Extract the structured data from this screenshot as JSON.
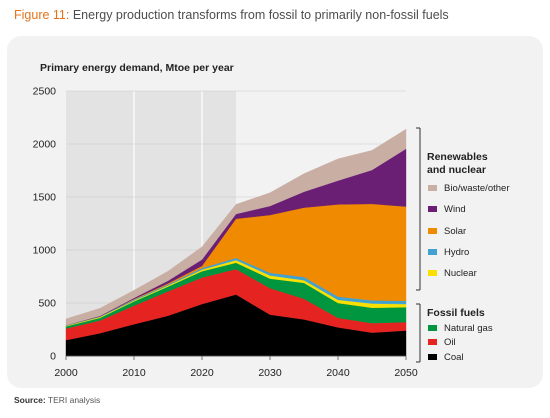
{
  "figure": {
    "number": "Figure 11:",
    "caption": "Energy production transforms from fossil to primarily non-fossil fuels"
  },
  "source": {
    "label": "Source:",
    "text": "TERI analysis"
  },
  "chart_data": {
    "type": "area",
    "stacked": true,
    "title": "Primary energy demand, Mtoe per year",
    "x": [
      2000,
      2005,
      2010,
      2015,
      2020,
      2025,
      2030,
      2035,
      2040,
      2045,
      2050
    ],
    "xticks": [
      2000,
      2010,
      2020,
      2030,
      2040,
      2050
    ],
    "yticks": [
      0,
      500,
      1000,
      1500,
      2000,
      2500
    ],
    "xlim": [
      2000,
      2050
    ],
    "ylim": [
      0,
      2500
    ],
    "shaded_historical_period": [
      2000,
      2025
    ],
    "legend": {
      "placement": "right",
      "groups": [
        {
          "title": "Renewables and nuclear",
          "title_lines": [
            "Renewables",
            "and nuclear"
          ],
          "series": [
            "Bio/waste/other",
            "Wind",
            "Solar",
            "Hydro",
            "Nuclear"
          ]
        },
        {
          "title": "Fossil fuels",
          "series": [
            "Natural gas",
            "Oil",
            "Coal"
          ]
        }
      ]
    },
    "series": [
      {
        "name": "Coal",
        "color": "#000000",
        "values": [
          150,
          215,
          300,
          380,
          490,
          580,
          390,
          345,
          270,
          220,
          240
        ]
      },
      {
        "name": "Oil",
        "color": "#e52421",
        "values": [
          110,
          120,
          175,
          230,
          250,
          240,
          250,
          195,
          90,
          90,
          80
        ]
      },
      {
        "name": "Natural gas",
        "color": "#009640",
        "values": [
          20,
          25,
          40,
          45,
          60,
          60,
          90,
          150,
          140,
          145,
          140
        ]
      },
      {
        "name": "Nuclear",
        "color": "#f9e000",
        "values": [
          5,
          8,
          8,
          10,
          15,
          25,
          30,
          25,
          30,
          40,
          30
        ]
      },
      {
        "name": "Hydro",
        "color": "#41a2d1",
        "values": [
          5,
          6,
          10,
          10,
          15,
          20,
          25,
          30,
          30,
          30,
          30
        ]
      },
      {
        "name": "Solar",
        "color": "#f08a00",
        "values": [
          0,
          0,
          5,
          10,
          20,
          370,
          545,
          655,
          870,
          910,
          890
        ]
      },
      {
        "name": "Wind",
        "color": "#6a1e74",
        "values": [
          0,
          5,
          10,
          25,
          60,
          45,
          85,
          150,
          225,
          320,
          545
        ]
      },
      {
        "name": "Bio/waste/other",
        "color": "#c9aea4",
        "values": [
          60,
          71,
          72,
          90,
          120,
          90,
          125,
          170,
          205,
          185,
          185
        ]
      }
    ]
  }
}
